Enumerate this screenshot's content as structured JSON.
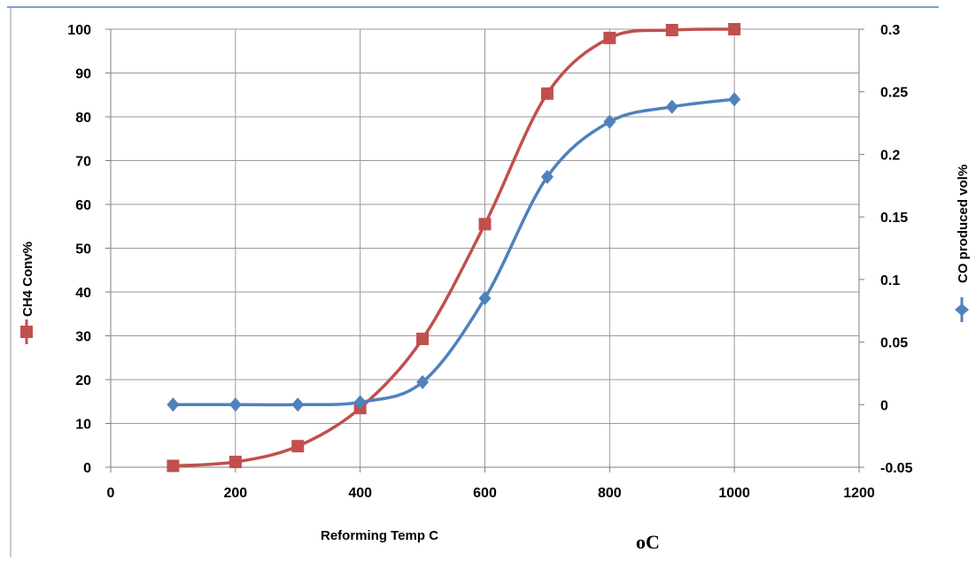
{
  "chart_data": {
    "type": "line",
    "title": "",
    "xlabel": "Reforming Temp  C",
    "unit_label": "oC",
    "ylabel_left": "CH4 Conv%",
    "ylabel_right": "CO  produced vol%",
    "xlim": [
      0,
      1200
    ],
    "ylim_left": [
      0,
      100
    ],
    "ylim_right": [
      -0.05,
      0.3
    ],
    "x_ticks": [
      "0",
      "200",
      "400",
      "600",
      "800",
      "1000",
      "1200"
    ],
    "y_left_ticks": [
      "0",
      "10",
      "20",
      "30",
      "40",
      "50",
      "60",
      "70",
      "80",
      "90",
      "100"
    ],
    "y_right_ticks": [
      "-0.05",
      "0",
      "0.05",
      "0.1",
      "0.15",
      "0.2",
      "0.25",
      "0.3"
    ],
    "grid": true,
    "series": [
      {
        "name": "CH4 Conv%",
        "axis": "left",
        "marker": "square",
        "color": "#c0504d",
        "x": [
          100,
          200,
          300,
          400,
          500,
          600,
          700,
          800,
          900,
          1000
        ],
        "y": [
          0.3,
          1.2,
          4.8,
          13.5,
          29.3,
          55.5,
          85.3,
          98,
          99.8,
          100
        ]
      },
      {
        "name": "CO  produced vol%",
        "axis": "right",
        "marker": "diamond",
        "color": "#4f81bd",
        "x": [
          100,
          200,
          300,
          400,
          500,
          600,
          700,
          800,
          900,
          1000
        ],
        "y": [
          0.0,
          0.0,
          0.0,
          0.002,
          0.018,
          0.085,
          0.182,
          0.226,
          0.238,
          0.244
        ]
      }
    ]
  }
}
